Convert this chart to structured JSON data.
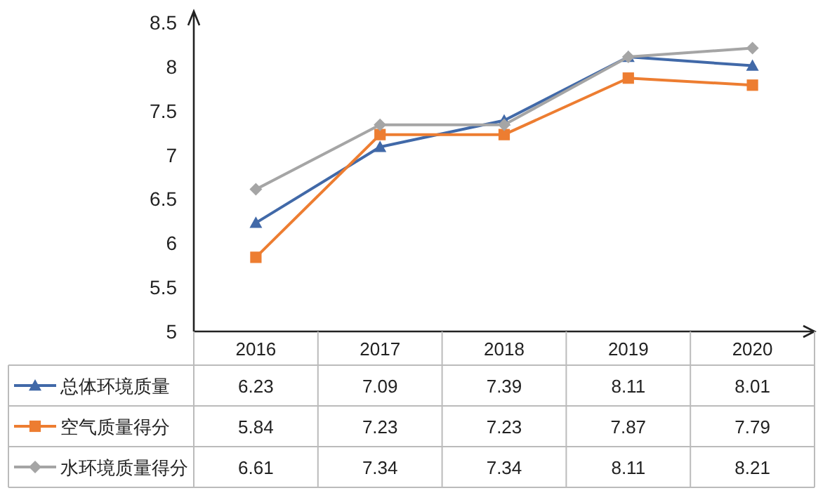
{
  "chart_data": {
    "type": "line",
    "categories": [
      "2016",
      "2017",
      "2018",
      "2019",
      "2020"
    ],
    "series": [
      {
        "name": "总体环境质量",
        "color": "#4169a8",
        "marker": "triangle",
        "values": [
          6.23,
          7.09,
          7.39,
          8.11,
          8.01
        ]
      },
      {
        "name": "空气质量得分",
        "color": "#ed7d31",
        "marker": "square",
        "values": [
          5.84,
          7.23,
          7.23,
          7.87,
          7.79
        ]
      },
      {
        "name": "水环境质量得分",
        "color": "#a5a5a5",
        "marker": "diamond",
        "values": [
          6.61,
          7.34,
          7.34,
          8.11,
          8.21
        ]
      }
    ],
    "ylim": [
      5,
      8.5
    ],
    "yticks": [
      5,
      5.5,
      6,
      6.5,
      7,
      7.5,
      8,
      8.5
    ],
    "grid": false,
    "legend": "bottom",
    "data_labels": true
  }
}
